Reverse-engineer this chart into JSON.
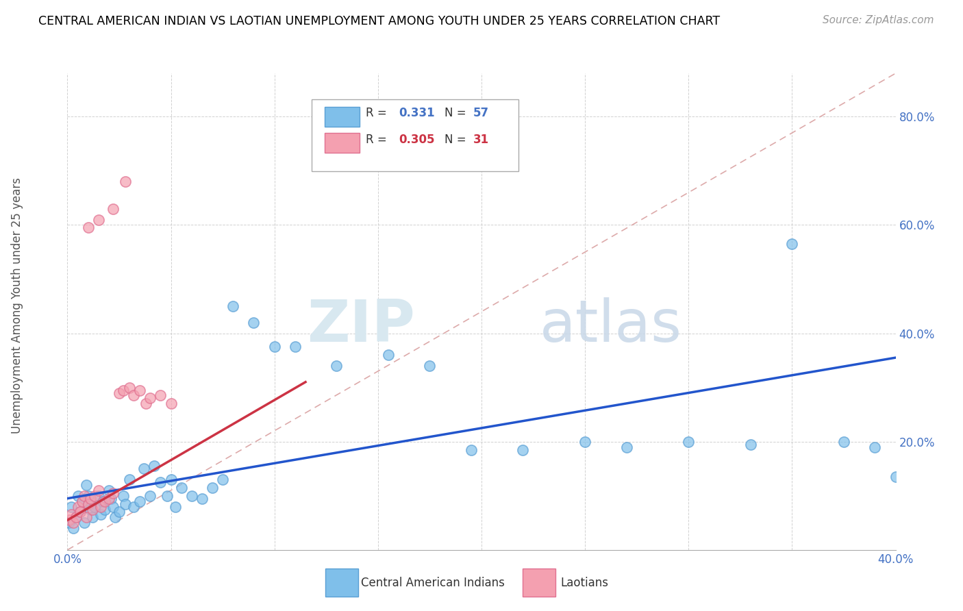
{
  "title": "CENTRAL AMERICAN INDIAN VS LAOTIAN UNEMPLOYMENT AMONG YOUTH UNDER 25 YEARS CORRELATION CHART",
  "source": "Source: ZipAtlas.com",
  "ylabel": "Unemployment Among Youth under 25 years",
  "xlim": [
    0.0,
    0.4
  ],
  "ylim": [
    0.0,
    0.88
  ],
  "blue_color": "#7fbfea",
  "blue_edge_color": "#5a9fd4",
  "pink_color": "#f4a0b0",
  "pink_edge_color": "#e07090",
  "blue_line_color": "#2255cc",
  "pink_line_color": "#cc3344",
  "dash_line_color": "#ddaaaa",
  "watermark_zip": "ZIP",
  "watermark_atlas": "atlas",
  "blue_line_x0": 0.0,
  "blue_line_y0": 0.095,
  "blue_line_x1": 0.4,
  "blue_line_y1": 0.355,
  "pink_line_x0": 0.0,
  "pink_line_y0": 0.055,
  "pink_line_x1": 0.115,
  "pink_line_y1": 0.31,
  "blue_scatter_x": [
    0.001,
    0.002,
    0.003,
    0.004,
    0.005,
    0.006,
    0.007,
    0.008,
    0.009,
    0.01,
    0.01,
    0.011,
    0.012,
    0.013,
    0.015,
    0.016,
    0.017,
    0.018,
    0.02,
    0.021,
    0.022,
    0.023,
    0.025,
    0.027,
    0.028,
    0.03,
    0.032,
    0.035,
    0.037,
    0.04,
    0.042,
    0.045,
    0.048,
    0.05,
    0.052,
    0.055,
    0.06,
    0.065,
    0.07,
    0.075,
    0.08,
    0.09,
    0.1,
    0.11,
    0.13,
    0.155,
    0.175,
    0.195,
    0.22,
    0.25,
    0.27,
    0.3,
    0.33,
    0.375,
    0.39,
    0.4,
    0.35
  ],
  "blue_scatter_y": [
    0.05,
    0.08,
    0.04,
    0.06,
    0.1,
    0.07,
    0.09,
    0.05,
    0.12,
    0.085,
    0.1,
    0.075,
    0.06,
    0.08,
    0.1,
    0.065,
    0.09,
    0.075,
    0.11,
    0.095,
    0.08,
    0.06,
    0.07,
    0.1,
    0.085,
    0.13,
    0.08,
    0.09,
    0.15,
    0.1,
    0.155,
    0.125,
    0.1,
    0.13,
    0.08,
    0.115,
    0.1,
    0.095,
    0.115,
    0.13,
    0.45,
    0.42,
    0.375,
    0.375,
    0.34,
    0.36,
    0.34,
    0.185,
    0.185,
    0.2,
    0.19,
    0.2,
    0.195,
    0.2,
    0.19,
    0.135,
    0.565
  ],
  "pink_scatter_x": [
    0.001,
    0.002,
    0.003,
    0.004,
    0.005,
    0.006,
    0.007,
    0.008,
    0.009,
    0.01,
    0.011,
    0.012,
    0.013,
    0.015,
    0.016,
    0.018,
    0.02,
    0.022,
    0.025,
    0.027,
    0.03,
    0.032,
    0.035,
    0.038,
    0.04,
    0.045,
    0.05,
    0.022,
    0.028,
    0.01,
    0.015
  ],
  "pink_scatter_y": [
    0.055,
    0.065,
    0.05,
    0.06,
    0.08,
    0.07,
    0.09,
    0.1,
    0.06,
    0.085,
    0.095,
    0.075,
    0.1,
    0.11,
    0.08,
    0.09,
    0.095,
    0.105,
    0.29,
    0.295,
    0.3,
    0.285,
    0.295,
    0.27,
    0.28,
    0.285,
    0.27,
    0.63,
    0.68,
    0.595,
    0.61
  ]
}
